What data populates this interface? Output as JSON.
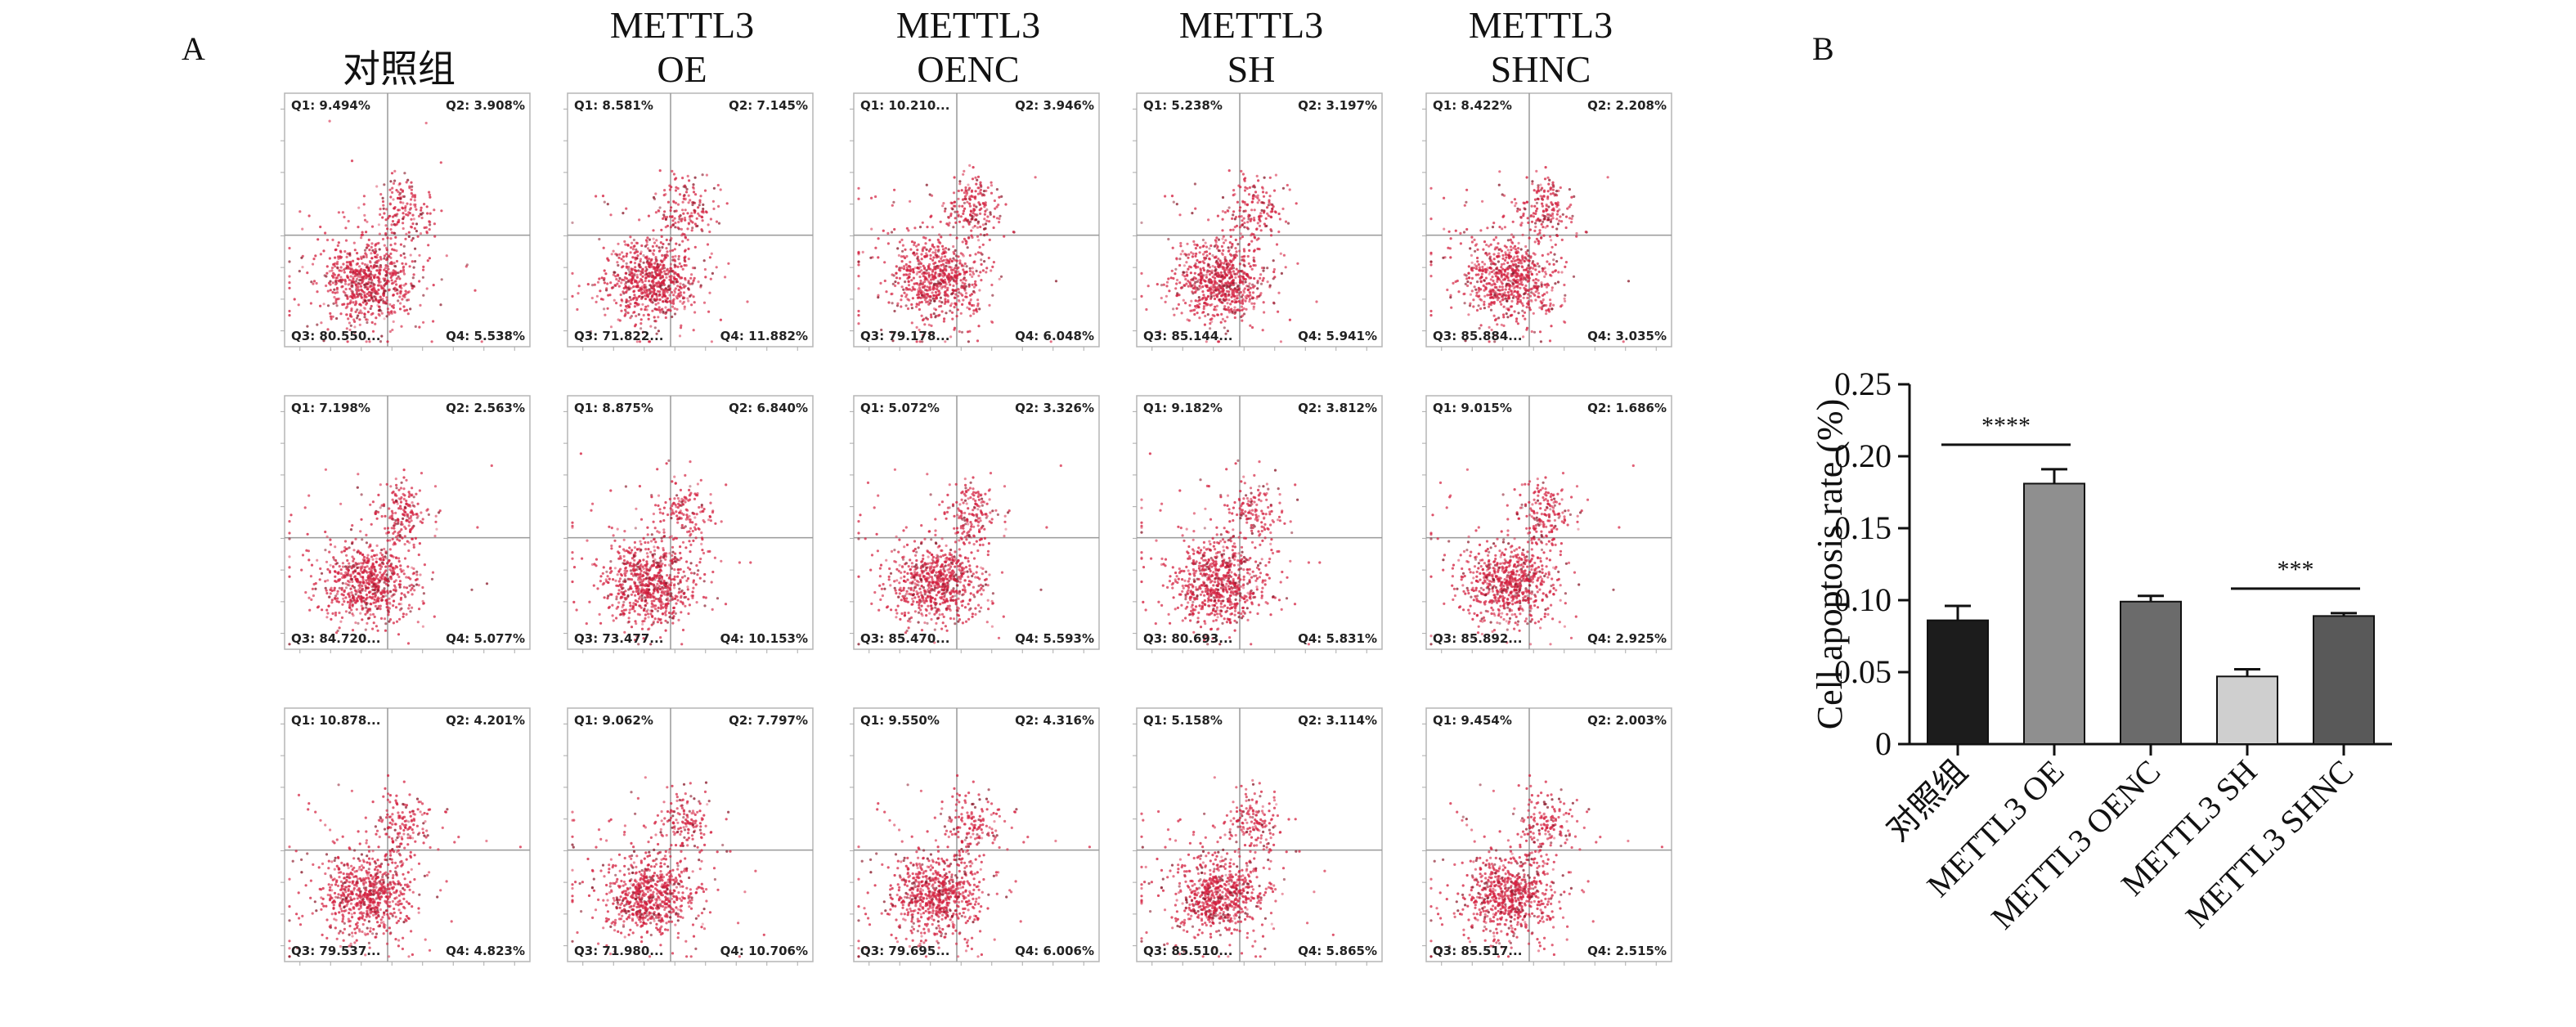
{
  "panels": {
    "a": "A",
    "b": "B"
  },
  "flow": {
    "columns": [
      {
        "title_line1": "对照组",
        "title_line2": ""
      },
      {
        "title_line1": "METTL3",
        "title_line2": "OE"
      },
      {
        "title_line1": "METTL3",
        "title_line2": "OENC"
      },
      {
        "title_line1": "METTL3",
        "title_line2": "SH"
      },
      {
        "title_line1": "METTL3",
        "title_line2": "SHNC"
      }
    ],
    "plots": [
      [
        {
          "q1": "Q1: 9.494%",
          "q2": "Q2: 3.908%",
          "q3": "Q3: 80.550...",
          "q4": "Q4: 5.538%"
        },
        {
          "q1": "Q1: 7.198%",
          "q2": "Q2: 2.563%",
          "q3": "Q3: 84.720...",
          "q4": "Q4: 5.077%"
        },
        {
          "q1": "Q1: 10.878...",
          "q2": "Q2: 4.201%",
          "q3": "Q3: 79.537...",
          "q4": "Q4: 4.823%"
        }
      ],
      [
        {
          "q1": "Q1: 8.581%",
          "q2": "Q2: 7.145%",
          "q3": "Q3: 71.822...",
          "q4": "Q4: 11.882%"
        },
        {
          "q1": "Q1: 8.875%",
          "q2": "Q2: 6.840%",
          "q3": "Q3: 73.477...",
          "q4": "Q4: 10.153%"
        },
        {
          "q1": "Q1: 9.062%",
          "q2": "Q2: 7.797%",
          "q3": "Q3: 71.980...",
          "q4": "Q4: 10.706%"
        }
      ],
      [
        {
          "q1": "Q1: 10.210...",
          "q2": "Q2: 3.946%",
          "q3": "Q3: 79.178...",
          "q4": "Q4: 6.048%"
        },
        {
          "q1": "Q1: 5.072%",
          "q2": "Q2: 3.326%",
          "q3": "Q3: 85.470...",
          "q4": "Q4: 5.593%"
        },
        {
          "q1": "Q1: 9.550%",
          "q2": "Q2: 4.316%",
          "q3": "Q3: 79.695...",
          "q4": "Q4: 6.006%"
        }
      ],
      [
        {
          "q1": "Q1: 5.238%",
          "q2": "Q2: 3.197%",
          "q3": "Q3: 85.144...",
          "q4": "Q4: 5.941%"
        },
        {
          "q1": "Q1: 9.182%",
          "q2": "Q2: 3.812%",
          "q3": "Q3: 80.693...",
          "q4": "Q4: 5.831%"
        },
        {
          "q1": "Q1: 5.158%",
          "q2": "Q2: 3.114%",
          "q3": "Q3: 85.510...",
          "q4": "Q4: 5.865%"
        }
      ],
      [
        {
          "q1": "Q1: 8.422%",
          "q2": "Q2: 2.208%",
          "q3": "Q3: 85.884...",
          "q4": "Q4: 3.035%"
        },
        {
          "q1": "Q1: 9.015%",
          "q2": "Q2: 1.686%",
          "q3": "Q3: 85.892...",
          "q4": "Q4: 2.925%"
        },
        {
          "q1": "Q1: 9.454%",
          "q2": "Q2: 2.003%",
          "q3": "Q3: 85.517...",
          "q4": "Q4: 2.515%"
        }
      ]
    ],
    "point_color": "#d4203f"
  },
  "chart_data": {
    "type": "bar",
    "title": "",
    "xlabel": "",
    "ylabel": "Cell apoptosis rate (%)",
    "ylim": [
      0,
      0.25
    ],
    "yticks": [
      "0",
      "0.05",
      "0.10",
      "0.15",
      "0.20",
      "0.25"
    ],
    "categories": [
      "对照组",
      "METTL3 OE",
      "METTL3 OENC",
      "METTL3 SH",
      "METTL3 SHNC"
    ],
    "values": [
      0.086,
      0.181,
      0.099,
      0.047,
      0.089
    ],
    "errors": [
      0.01,
      0.01,
      0.004,
      0.005,
      0.002
    ],
    "colors": [
      "#1c1c1c",
      "#8f8f8f",
      "#6b6b6b",
      "#cfcfcf",
      "#595959"
    ],
    "significance": [
      {
        "label": "****",
        "from": 0,
        "to": 1
      },
      {
        "label": "***",
        "from": 3,
        "to": 4
      }
    ],
    "grid": false,
    "legend": "none"
  }
}
